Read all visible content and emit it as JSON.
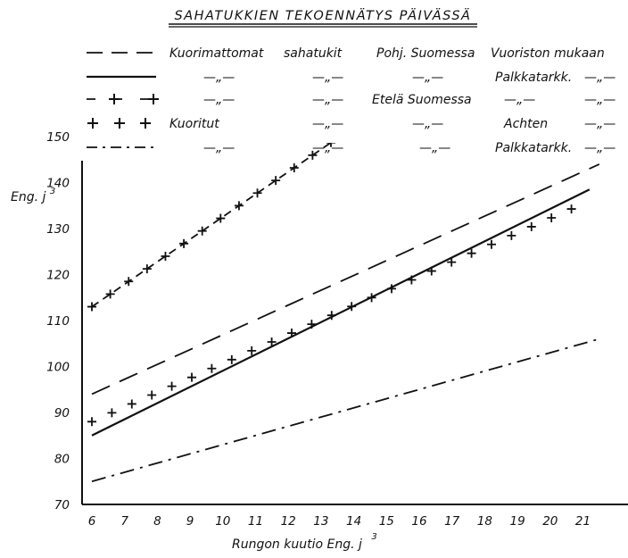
{
  "chart_data": {
    "type": "line",
    "title": "SAHATUKKIEN TEKOENNÄTYS PÄIVÄSSÄ",
    "xlabel": "Rungon kuutio Eng. j",
    "xlabel_sup": "3",
    "ylabel": "Eng. j",
    "ylabel_sup": "3",
    "xlim": [
      6,
      21.5
    ],
    "ylim": [
      70,
      155
    ],
    "x_ticks": [
      "6",
      "7",
      "8",
      "9",
      "10",
      "11",
      "12",
      "13",
      "14",
      "15",
      "16",
      "17",
      "18",
      "19",
      "20",
      "21"
    ],
    "y_ticks": [
      "70",
      "80",
      "90",
      "100",
      "110",
      "120",
      "130",
      "140",
      "150"
    ],
    "grid": false,
    "legend_position": "top",
    "legend_rows": [
      {
        "style": "dashed",
        "cells": [
          "Kuorimattomat",
          "sahatukit",
          "Pohj. Suomessa",
          "Vuoriston mukaan",
          ""
        ]
      },
      {
        "style": "solid",
        "cells": [
          "—„—",
          "—„—",
          "—„—",
          "Palkkatarkk.",
          "—„—"
        ]
      },
      {
        "style": "dash-plus",
        "cells": [
          "—„—",
          "—„—",
          "Etelä Suomessa",
          "—„—",
          "—„—"
        ]
      },
      {
        "style": "plus",
        "cells": [
          "Kuoritut",
          "—„—",
          "—„—",
          "Achten",
          "—„—"
        ]
      },
      {
        "style": "dash-dot",
        "cells": [
          "—„—",
          "—„—",
          "—„—",
          "Palkkatarkk.",
          "—„—"
        ]
      }
    ],
    "series": [
      {
        "style": "dashed",
        "x": [
          6,
          21.5
        ],
        "y": [
          94,
          144
        ]
      },
      {
        "style": "solid",
        "x": [
          6,
          21.2
        ],
        "y": [
          85,
          138.5
        ]
      },
      {
        "style": "dash-plus",
        "x": [
          6,
          15
        ],
        "y": [
          113,
          157
        ]
      },
      {
        "style": "plus",
        "x": [
          6,
          21.2
        ],
        "y": [
          88,
          136
        ]
      },
      {
        "style": "dash-dot",
        "x": [
          6,
          21.5
        ],
        "y": [
          75,
          106
        ]
      }
    ],
    "colors": {
      "ink": "#111111",
      "background": "#ffffff"
    }
  }
}
